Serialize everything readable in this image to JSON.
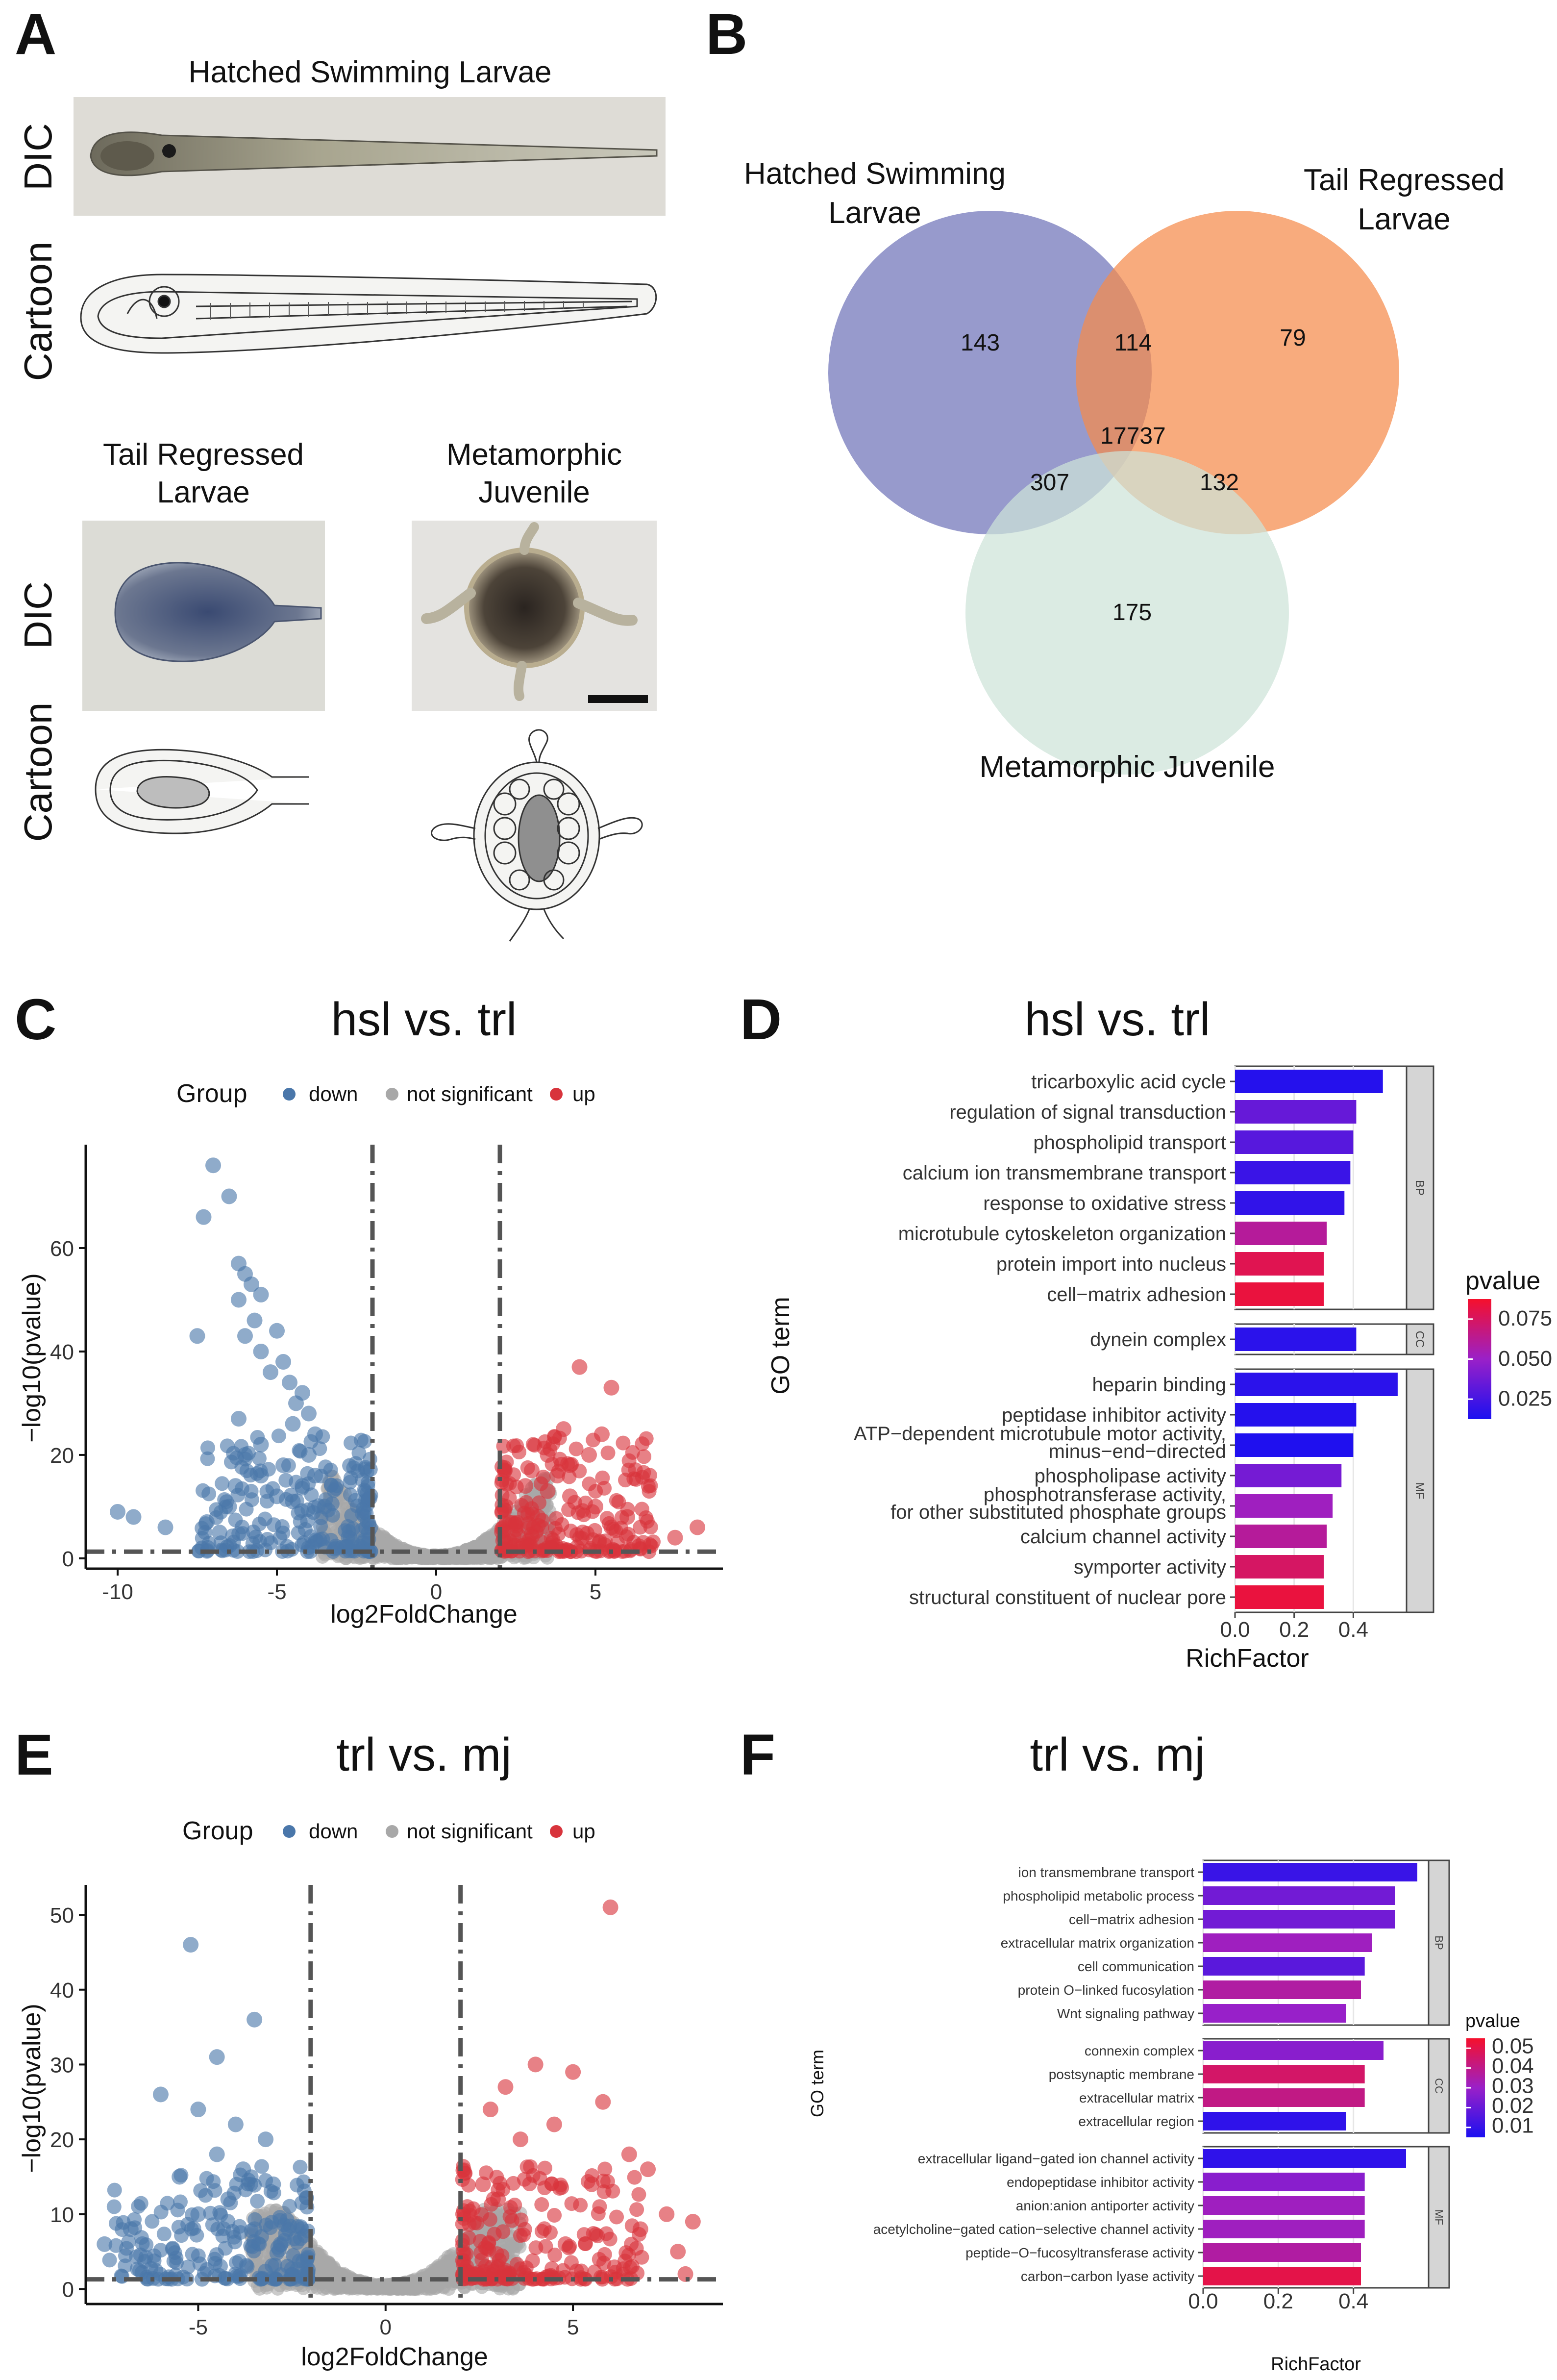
{
  "panels": {
    "A": "A",
    "B": "B",
    "C": "C",
    "D": "D",
    "E": "E",
    "F": "F"
  },
  "panelA": {
    "hsl_title": "Hatched Swimming Larvae",
    "trl_title_1": "Tail Regressed",
    "trl_title_2": "Larvae",
    "mj_title_1": "Metamorphic",
    "mj_title_2": "Juvenile",
    "row_dic": "DIC",
    "row_cartoon": "Cartoon"
  },
  "panelB": {
    "label_hsl_1": "Hatched Swimming",
    "label_hsl_2": "Larvae",
    "label_trl_1": "Tail Regressed",
    "label_trl_2": "Larvae",
    "label_mj": "Metamorphic Juvenile",
    "colors": {
      "hsl": "#6f73b8",
      "trl": "#f58a4b",
      "mj": "#cde3d8"
    },
    "counts": {
      "hsl_only": "143",
      "hsl_trl": "114",
      "trl_only": "79",
      "all": "17737",
      "hsl_mj": "307",
      "trl_mj": "132",
      "mj_only": "175"
    }
  },
  "volcano_legend": {
    "group": "Group",
    "down": "down",
    "ns": "not significant",
    "up": "up"
  },
  "colors": {
    "down": "#4a77aa",
    "up": "#d8343c",
    "ns": "#a8a8a8",
    "p_low": "#1c10f0",
    "p_high": "#f5102c"
  },
  "chart_data": [
    {
      "id": "C",
      "type": "scatter",
      "title": "hsl vs. trl",
      "xlabel": "log2FoldChange",
      "ylabel": "−log10(pvalue)",
      "xlim": [
        -11,
        9
      ],
      "ylim": [
        -2,
        80
      ],
      "xticks": [
        -10,
        -5,
        0,
        5
      ],
      "yticks": [
        0,
        20,
        40,
        60
      ],
      "fc_threshold": 2,
      "p_threshold": 1.3,
      "highlighted_points": [
        [
          -7.0,
          76
        ],
        [
          -6.5,
          70
        ],
        [
          -7.3,
          66
        ],
        [
          -6.2,
          57
        ],
        [
          -6.0,
          55
        ],
        [
          -5.8,
          53
        ],
        [
          -5.5,
          51
        ],
        [
          -6.2,
          50
        ],
        [
          -5.7,
          46
        ],
        [
          -5.0,
          44
        ],
        [
          -7.5,
          43
        ],
        [
          -6.0,
          43
        ],
        [
          -5.5,
          40
        ],
        [
          -4.8,
          38
        ],
        [
          -5.2,
          36
        ],
        [
          -4.6,
          34
        ],
        [
          -4.2,
          32
        ],
        [
          -4.4,
          30
        ],
        [
          -4.0,
          28
        ],
        [
          -6.2,
          27
        ],
        [
          -4.5,
          26
        ],
        [
          -3.8,
          24
        ],
        [
          -5.5,
          22
        ],
        [
          -4.0,
          20
        ],
        [
          -6.0,
          20
        ],
        [
          -4.8,
          18
        ],
        [
          -5.5,
          16
        ],
        [
          -3.8,
          16
        ],
        [
          -6.3,
          14
        ],
        [
          -4.2,
          14
        ],
        [
          -5.0,
          12
        ],
        [
          -6.5,
          10
        ],
        [
          -4.5,
          11
        ],
        [
          -10.0,
          9
        ],
        [
          -9.5,
          8
        ],
        [
          -8.5,
          6
        ],
        [
          -7.2,
          7
        ],
        [
          -6.8,
          5
        ],
        [
          -3.5,
          10
        ],
        [
          4.5,
          37
        ],
        [
          5.5,
          33
        ],
        [
          4.0,
          25
        ],
        [
          5.2,
          24
        ],
        [
          4.8,
          20
        ],
        [
          3.5,
          20
        ],
        [
          4.2,
          18
        ],
        [
          3.8,
          16
        ],
        [
          3.0,
          17
        ],
        [
          2.8,
          14
        ],
        [
          3.5,
          13
        ],
        [
          5.0,
          10
        ],
        [
          4.2,
          12
        ],
        [
          6.0,
          8
        ],
        [
          5.5,
          6
        ],
        [
          7.5,
          4
        ],
        [
          8.2,
          6
        ],
        [
          6.5,
          3
        ],
        [
          3.2,
          8
        ],
        [
          4.6,
          5
        ]
      ],
      "notes": "Dense clouds of down (blue) points at x<-2 and up (red) points at x>2; grey not significant points near 0"
    },
    {
      "id": "D",
      "type": "bar",
      "orientation": "horizontal",
      "title": "hsl vs. trl",
      "xlabel": "RichFactor",
      "ylabel": "GO term",
      "xlim": [
        0,
        0.58
      ],
      "xticks": [
        0.0,
        0.2,
        0.4
      ],
      "legend_title": "pvalue",
      "legend_ticks": [
        "0.075",
        "0.050",
        "0.025"
      ],
      "pvalue_range": [
        0.005,
        0.09
      ],
      "facets": [
        {
          "name": "BP",
          "terms": [
            "tricarboxylic acid cycle",
            "regulation of signal transduction",
            "phospholipid transport",
            "calcium ion transmembrane transport",
            "response to oxidative stress",
            "microtubule cytoskeleton organization",
            "protein import into nucleus",
            "cell−matrix adhesion"
          ],
          "values": [
            0.5,
            0.41,
            0.4,
            0.39,
            0.37,
            0.31,
            0.3,
            0.3
          ],
          "pvalues": [
            0.008,
            0.03,
            0.025,
            0.015,
            0.012,
            0.06,
            0.08,
            0.085
          ]
        },
        {
          "name": "CC",
          "terms": [
            "dynein complex"
          ],
          "values": [
            0.41
          ],
          "pvalues": [
            0.01
          ]
        },
        {
          "name": "MF",
          "terms": [
            "heparin binding",
            "peptidase inhibitor activity",
            "ATP−dependent microtubule motor activity, minus−end−directed",
            "phospholipase activity",
            "phosphotransferase activity, for other substituted phosphate groups",
            "calcium channel activity",
            "symporter activity",
            "structural constituent of nuclear pore"
          ],
          "values": [
            0.55,
            0.41,
            0.4,
            0.36,
            0.33,
            0.31,
            0.3,
            0.3
          ],
          "pvalues": [
            0.01,
            0.008,
            0.006,
            0.035,
            0.05,
            0.06,
            0.075,
            0.085
          ]
        }
      ]
    },
    {
      "id": "E",
      "type": "scatter",
      "title": "trl vs. mj",
      "xlabel": "log2FoldChange",
      "ylabel": "−log10(pvalue)",
      "xlim": [
        -8,
        9
      ],
      "ylim": [
        -2,
        54
      ],
      "xticks": [
        -5,
        0,
        5
      ],
      "yticks": [
        0,
        10,
        20,
        30,
        40,
        50
      ],
      "fc_threshold": 2,
      "p_threshold": 1.3,
      "highlighted_points": [
        [
          -5.2,
          46
        ],
        [
          -3.5,
          36
        ],
        [
          -4.5,
          31
        ],
        [
          -6.0,
          26
        ],
        [
          -5.0,
          24
        ],
        [
          -4.0,
          22
        ],
        [
          -3.2,
          20
        ],
        [
          -4.5,
          18
        ],
        [
          -3.8,
          16
        ],
        [
          -5.5,
          15
        ],
        [
          -3.0,
          14
        ],
        [
          -4.2,
          12
        ],
        [
          -5.0,
          10
        ],
        [
          -6.8,
          8
        ],
        [
          -7.5,
          6
        ],
        [
          -3.5,
          8
        ],
        [
          -2.8,
          6
        ],
        [
          6.0,
          51
        ],
        [
          4.0,
          30
        ],
        [
          5.0,
          29
        ],
        [
          3.2,
          27
        ],
        [
          5.8,
          25
        ],
        [
          2.8,
          24
        ],
        [
          4.5,
          22
        ],
        [
          3.6,
          20
        ],
        [
          6.5,
          18
        ],
        [
          7.0,
          16
        ],
        [
          5.5,
          14
        ],
        [
          2.6,
          14
        ],
        [
          3.0,
          12
        ],
        [
          7.5,
          10
        ],
        [
          8.2,
          9
        ],
        [
          6.8,
          8
        ],
        [
          4.8,
          6
        ],
        [
          7.8,
          5
        ],
        [
          8.0,
          2
        ]
      ],
      "notes": "Dense clouds of down (blue) points at x<-2 and up (red) points at x>2; grey not significant points near 0"
    },
    {
      "id": "F",
      "type": "bar",
      "orientation": "horizontal",
      "title": "trl vs. mj",
      "xlabel": "RichFactor",
      "ylabel": "GO term",
      "xlim": [
        0,
        0.6
      ],
      "xticks": [
        0.0,
        0.2,
        0.4
      ],
      "legend_title": "pvalue",
      "legend_ticks": [
        "0.05",
        "0.04",
        "0.03",
        "0.02",
        "0.01"
      ],
      "pvalue_range": [
        0.002,
        0.055
      ],
      "facets": [
        {
          "name": "BP",
          "terms": [
            "ion transmembrane transport",
            "phospholipid metabolic process",
            "cell−matrix adhesion",
            "extracellular matrix organization",
            "cell communication",
            "protein O−linked fucosylation",
            "Wnt signaling pathway"
          ],
          "values": [
            0.57,
            0.51,
            0.51,
            0.45,
            0.43,
            0.42,
            0.38
          ],
          "pvalues": [
            0.008,
            0.02,
            0.02,
            0.03,
            0.015,
            0.035,
            0.028
          ]
        },
        {
          "name": "CC",
          "terms": [
            "connexin complex",
            "postsynaptic membrane",
            "extracellular matrix",
            "extracellular region"
          ],
          "values": [
            0.48,
            0.43,
            0.43,
            0.38
          ],
          "pvalues": [
            0.025,
            0.045,
            0.04,
            0.006
          ]
        },
        {
          "name": "MF",
          "terms": [
            "extracellular ligand−gated ion channel activity",
            "endopeptidase inhibitor activity",
            "anion:anion antiporter activity",
            "acetylcholine−gated cation−selective channel activity",
            "peptide−O−fucosyltransferase activity",
            "carbon−carbon lyase activity"
          ],
          "values": [
            0.54,
            0.43,
            0.43,
            0.43,
            0.42,
            0.42
          ],
          "pvalues": [
            0.006,
            0.025,
            0.03,
            0.03,
            0.035,
            0.05
          ]
        }
      ]
    }
  ]
}
